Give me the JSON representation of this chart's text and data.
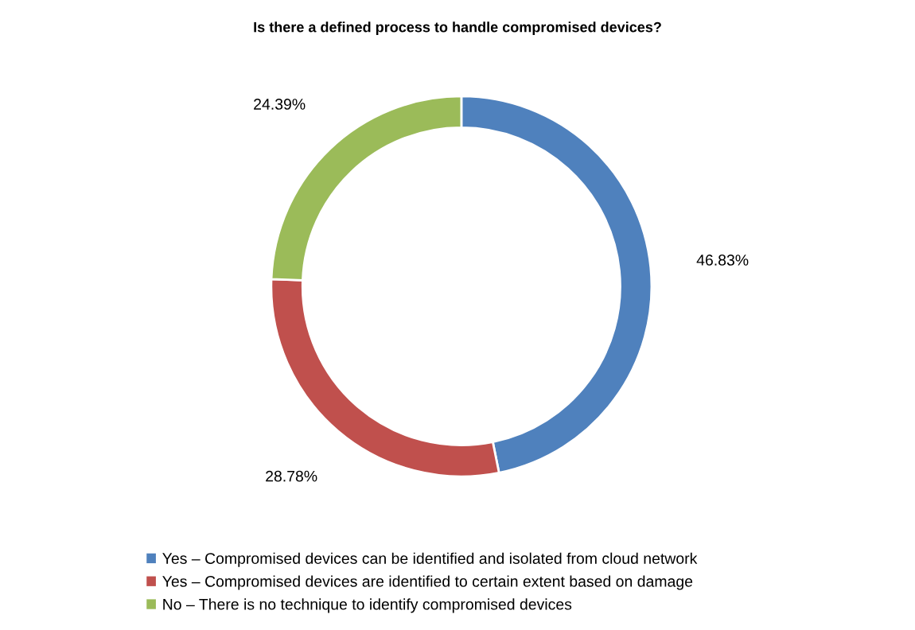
{
  "chart_data": {
    "type": "donut",
    "title": "Is there a defined process to handle compromised devices?",
    "categories": [
      "Yes – Compromised devices can be identified and isolated from cloud network",
      "Yes – Compromised devices are identified to certain extent based on damage",
      "No – There is no technique to identify compromised devices"
    ],
    "values": [
      46.83,
      28.78,
      24.39
    ],
    "colors": [
      "#4f81bd",
      "#c0504d",
      "#9bbb59"
    ],
    "value_labels": [
      "46.83%",
      "28.78%",
      "24.39%"
    ],
    "legend": "bottom"
  }
}
